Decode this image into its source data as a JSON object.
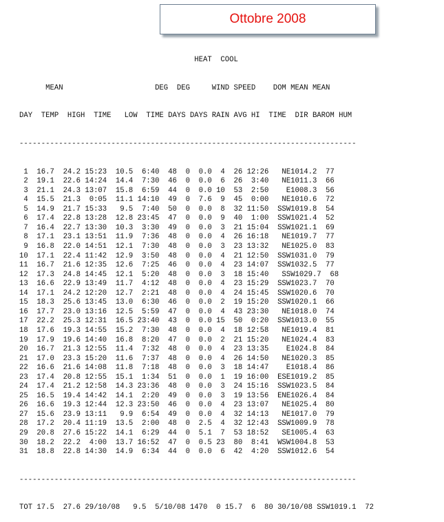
{
  "title": "Ottobre 2008",
  "header_lines": [
    "                                        HEAT  COOL",
    "      MEAN                     DEG  DEG     WIND SPEED    DOM MEAN MEAN",
    "DAY  TEMP  HIGH  TIME   LOW  TIME DAYS DAYS RAIN AVG HI  TIME  DIR BAROM HUM"
  ],
  "separator": "-----------------------------------------------------------------------------",
  "rows": [
    " 1  16.7  24.2 15:23  10.5  6:40  48  0  0.0  4  26 12:26   NE1014.2  77",
    " 2  19.1  22.6 14:24  14.4  7:30  46  0  0.0  6  26  3:40   NE1011.3  66",
    " 3  21.1  24.3 13:07  15.8  6:59  44  0  0.0 10  53  2:50    E1008.3  56",
    " 4  15.5  21.3  0:05  11.1 14:10  49  0  7.6  9  45  0:00   NE1010.6  72",
    " 5  14.9  21.7 15:33   9.5  7:40  50  0  0.0  8  32 11:50  SSW1019.8  54",
    " 6  17.4  22.8 13:28  12.8 23:45  47  0  0.0  9  40  1:00  SSW1021.4  52",
    " 7  16.4  22.7 13:30  10.3  3:30  49  0  0.0  3  21 15:04  SSW1021.1  69",
    " 8  17.1  23.1 13:51  11.9  7:36  48  0  0.0  4  26 16:18   NE1019.7  77",
    " 9  16.8  22.0 14:51  12.1  7:30  48  0  0.0  3  23 13:32   NE1025.0  83",
    "10  17.1  22.4 11:42  12.9  3:50  48  0  0.0  4  21 12:50  SSW1031.0  79",
    "11  16.7  21.6 12:35  12.6  7:25  46  0  0.0  4  23 14:07  SSW1032.5  77",
    "12  17.3  24.8 14:45  12.1  5:20  48  0  0.0  3  18 15:40   SSW1029.7  68",
    "13  16.6  22.9 13:49  11.7  4:12  48  0  0.0  4  23 15:29  SSW1023.7  70",
    "14  17.1  24.2 12:20  12.7  2:21  48  0  0.0  4  24 15:45  SSW1020.6  70",
    "15  18.3  25.6 13:45  13.0  6:30  46  0  0.0  2  19 15:20  SSW1020.1  66",
    "16  17.7  23.0 13:16  12.5  5:59  47  0  0.0  4  43 23:30   NE1018.0  74",
    "17  22.2  25.3 12:31  16.5 23:40  43  0  0.0 15  50  0:20  SSW1013.0  55",
    "18  17.6  19.3 14:55  15.2  7:30  48  0  0.0  4  18 12:58   NE1019.4  81",
    "19  17.9  19.6 14:40  16.8  8:20  47  0  0.0  2  21 15:20   NE1024.4  83",
    "20  16.7  21.3 12:55  11.4  7:32  48  0  0.0  4  23 13:35    E1024.8  84",
    "21  17.0  23.3 15:20  11.6  7:37  48  0  0.0  4  26 14:50   NE1020.3  85",
    "22  16.6  21.6 14:08  11.8  7:18  48  0  0.0  3  18 14:47    E1018.4  86",
    "23  17.4  20.8 12:55  15.1  1:34  51  0  0.0  1  19 16:00  ESE1019.2  85",
    "24  17.4  21.2 12:58  14.3 23:36  48  0  0.0  3  24 15:16  SSW1023.5  84",
    "25  16.5  19.4 14:42  14.1  2:20  49  0  0.0  3  19 13:56  ENE1026.4  84",
    "26  16.6  19.3 12:44  12.3 23:50  46  0  0.0  4  23 13:07   NE1025.4  80",
    "27  15.6  23.9 13:11   9.9  6:54  49  0  0.0  4  32 14:13   NE1017.0  79",
    "28  17.2  20.4 11:19  13.5  2:00  48  0  2.5  4  32 12:43  SSW1009.9  78",
    "29  20.8  27.6 15:22  14.1  6:29  44  0  5.1  7  53 18:52   SE1005.4  63",
    "30  18.2  22.2  4:00  13.7 16:52  47  0  0.5 23  80  8:41  WSW1004.8  53",
    "31  18.8  22.8 14:30  14.9  6:34  44  0  0.0  6  42  4:20  SSW1012.6  54"
  ],
  "total_row": "TOT 17.5  27.6 29/10/08   9.5  5/10/08 1470  0 15.7  6  80 30/10/08 SSW1019.1  72"
}
